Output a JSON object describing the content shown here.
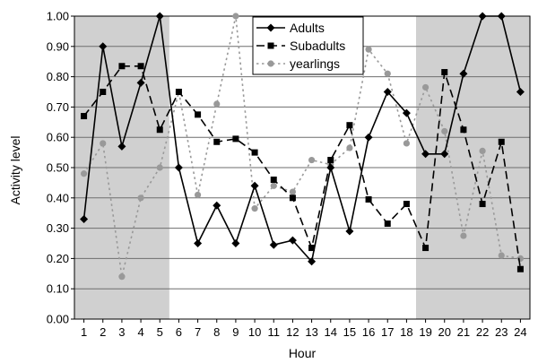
{
  "chart_data": {
    "type": "line",
    "title": "",
    "xlabel": "Hour",
    "ylabel": "Activity level",
    "ylim": [
      0,
      1
    ],
    "y_ticks": [
      "0.00",
      "0.10",
      "0.20",
      "0.30",
      "0.40",
      "0.50",
      "0.60",
      "0.70",
      "0.80",
      "0.90",
      "1.00"
    ],
    "categories": [
      "1",
      "2",
      "3",
      "4",
      "5",
      "6",
      "7",
      "8",
      "9",
      "10",
      "11",
      "12",
      "13",
      "14",
      "15",
      "16",
      "17",
      "18",
      "19",
      "20",
      "21",
      "22",
      "23",
      "24"
    ],
    "shaded_hour_ranges": [
      [
        1,
        5.5
      ],
      [
        18.5,
        24
      ]
    ],
    "grid": true,
    "legend_position": "top-center",
    "series": [
      {
        "name": "Adults",
        "color": "#000000",
        "style": "solid",
        "marker": "diamond",
        "values": [
          0.33,
          0.9,
          0.57,
          0.78,
          1.0,
          0.5,
          0.25,
          0.375,
          0.25,
          0.44,
          0.245,
          0.26,
          0.19,
          0.5,
          0.29,
          0.6,
          0.75,
          0.68,
          0.545,
          0.545,
          0.81,
          1.0,
          1.0,
          0.75
        ]
      },
      {
        "name": "Subadults",
        "color": "#000000",
        "style": "dashed",
        "marker": "square",
        "values": [
          0.67,
          0.75,
          0.835,
          0.835,
          0.625,
          0.75,
          0.675,
          0.585,
          0.595,
          0.55,
          0.46,
          0.4,
          0.235,
          0.525,
          0.64,
          0.395,
          0.315,
          0.38,
          0.235,
          0.815,
          0.625,
          0.38,
          0.585,
          0.165
        ]
      },
      {
        "name": "yearlings",
        "color": "#999999",
        "style": "dotted",
        "marker": "circle",
        "values": [
          0.48,
          0.58,
          0.14,
          0.4,
          0.5,
          0.75,
          0.41,
          0.71,
          1.0,
          0.365,
          0.44,
          0.42,
          0.525,
          0.51,
          0.565,
          0.89,
          0.81,
          0.58,
          0.765,
          0.62,
          0.275,
          0.555,
          0.21,
          0.2
        ]
      }
    ]
  }
}
